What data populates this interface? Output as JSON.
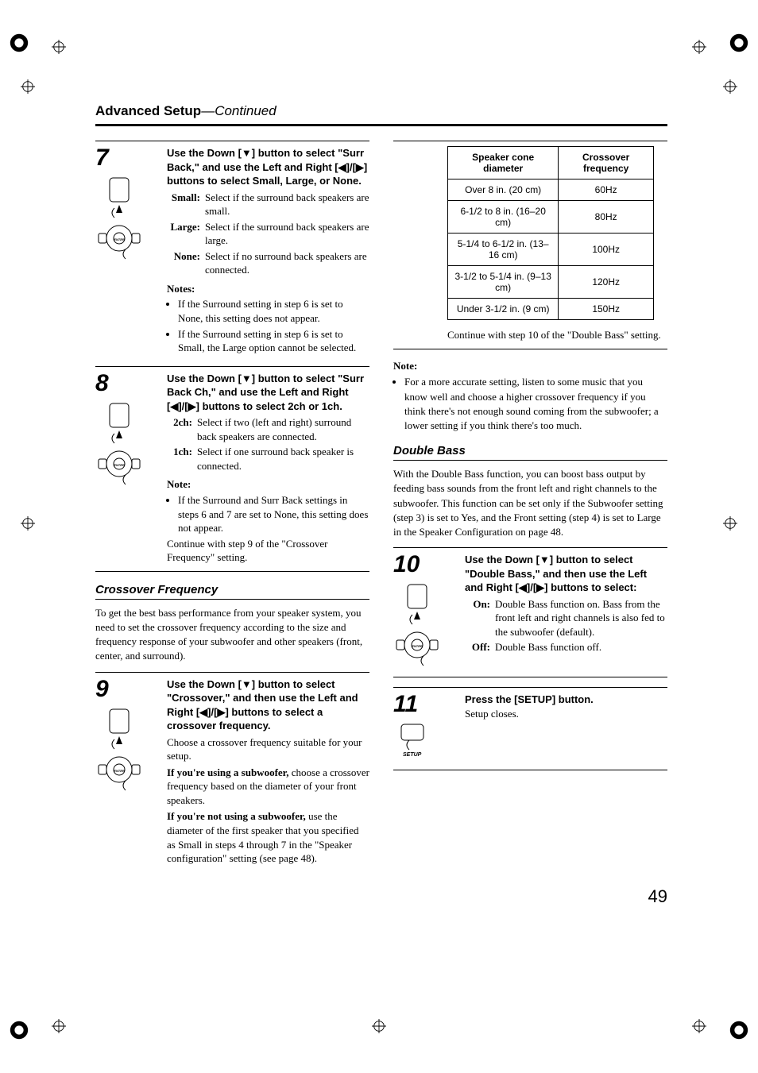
{
  "header": {
    "title": "Advanced Setup",
    "cont": "—Continued"
  },
  "page_number": "49",
  "step7": {
    "num": "7",
    "intro_a": "Use the Down [",
    "intro_b": "] button to select \"Surr Back,\" and use the Left and Right [",
    "intro_c": "]/[",
    "intro_d": "] buttons to select ",
    "opts": "Small, Large, or None.",
    "defs": [
      {
        "t": "Small:",
        "d": "Select if the surround back speakers are small."
      },
      {
        "t": "Large:",
        "d": "Select if the surround back speakers are large."
      },
      {
        "t": "None:",
        "d": "Select if no surround back speakers are connected."
      }
    ],
    "notes_head": "Notes:",
    "notes": [
      "If the Surround setting in step 6 is set to None, this setting does not appear.",
      "If the Surround setting in step 6 is set to Small, the Large option cannot be selected."
    ]
  },
  "step8": {
    "num": "8",
    "intro_a": "Use the Down [",
    "intro_b": "] button to select \"Surr Back Ch,\" and use the Left and Right [",
    "intro_c": "]/[",
    "intro_d": "] buttons to select ",
    "opts": "2ch or 1ch.",
    "defs": [
      {
        "t": "2ch:",
        "d": "Select if two (left and right) surround back speakers are connected."
      },
      {
        "t": "1ch:",
        "d": "Select if one surround back speaker is connected."
      }
    ],
    "note_head": "Note:",
    "note": "If the Surround and Surr Back settings in steps 6 and 7 are set to None, this setting does not appear.",
    "cont": "Continue with step 9 of the \"Crossover Frequency\" setting."
  },
  "crossover": {
    "title": "Crossover Frequency",
    "intro": "To get the best bass performance from your speaker system, you need to set the crossover frequency according to the size and frequency response of your subwoofer and other speakers (front, center, and surround)."
  },
  "step9": {
    "num": "9",
    "intro_a": "Use the Down [",
    "intro_b": "] button to select \"Crossover,\" and then use the Left and Right [",
    "intro_c": "]/[",
    "intro_d": "] buttons to select a crossover frequency.",
    "p1": "Choose a crossover frequency suitable for your setup.",
    "p2a": "If you're using a subwoofer,",
    "p2b": " choose a crossover frequency based on the diameter of your front speakers.",
    "p3a": "If you're not using a subwoofer,",
    "p3b": " use the diameter of the first speaker that you specified as Small in steps 4 through 7 in the \"Speaker configuration\" setting (see page 48)."
  },
  "xover_table": {
    "head": [
      "Speaker cone diameter",
      "Crossover frequency"
    ],
    "rows": [
      [
        "Over 8 in. (20 cm)",
        "60Hz"
      ],
      [
        "6-1/2 to 8 in. (16–20 cm)",
        "80Hz"
      ],
      [
        "5-1/4 to 6-1/2 in. (13–16 cm)",
        "100Hz"
      ],
      [
        "3-1/2 to 5-1/4 in. (9–13 cm)",
        "120Hz"
      ],
      [
        "Under 3-1/2 in. (9 cm)",
        "150Hz"
      ]
    ],
    "after": "Continue with step 10 of the \"Double Bass\" setting."
  },
  "right_note": {
    "head": "Note:",
    "text": "For a more accurate setting, listen to some music that you know well and choose a higher crossover frequency if you think there's not enough sound coming from the subwoofer; a lower setting if you think there's too much."
  },
  "double_bass": {
    "title": "Double Bass",
    "intro": "With the Double Bass function, you can boost bass output by feeding bass sounds from the front left and right channels to the subwoofer. This function can be set only if the Subwoofer setting (step 3) is set to Yes, and the Front setting (step 4) is set to Large in the Speaker Configuration on page 48."
  },
  "step10": {
    "num": "10",
    "intro_a": "Use the Down [",
    "intro_b": "] button to select \"Double Bass,\" and then use the Left and Right [",
    "intro_c": "]/[",
    "intro_d": "] buttons to select:",
    "defs": [
      {
        "t": "On:",
        "d": "Double Bass function on. Bass from the front left and right channels is also fed to the subwoofer (default)."
      },
      {
        "t": "Off:",
        "d": "Double Bass function off."
      }
    ]
  },
  "step11": {
    "num": "11",
    "line": "Press the [SETUP] button.",
    "p": "Setup closes."
  },
  "icons": {
    "down": "▼",
    "left": "◀",
    "right": "▶"
  }
}
